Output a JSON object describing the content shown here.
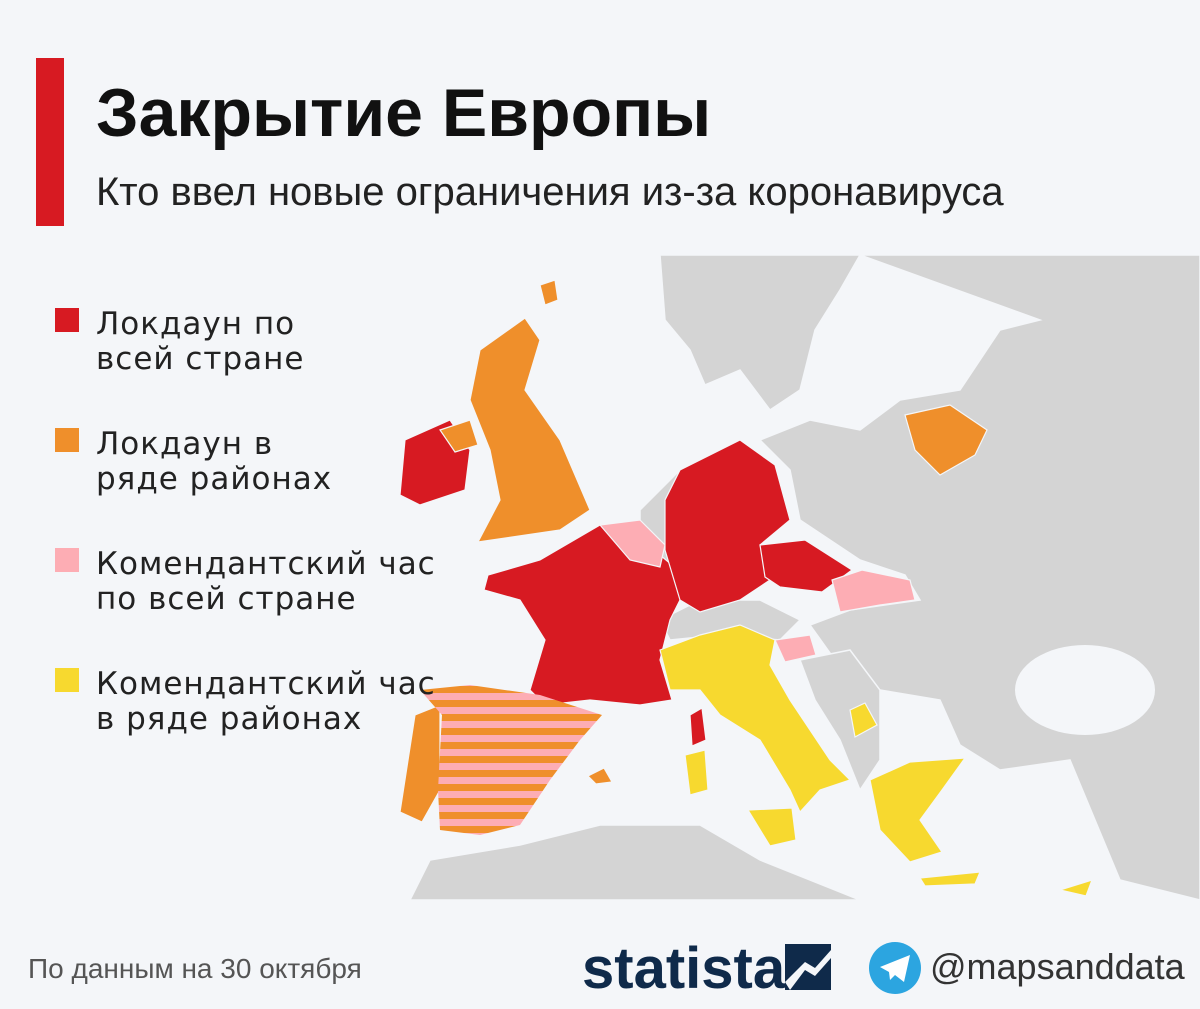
{
  "header": {
    "title": "Закрытие Европы",
    "subtitle": "Кто ввел новые ограничения из-за коронавируса"
  },
  "legend": [
    {
      "lines": [
        "Локдаун по",
        "всей стране"
      ],
      "color": "#d71a22"
    },
    {
      "lines": [
        "Локдаун в",
        "ряде районах"
      ],
      "color": "#ef8f2b"
    },
    {
      "lines": [
        "Комендантский час",
        "по всей стране"
      ],
      "color": "#fdadb4"
    },
    {
      "lines": [
        "Комендантский час",
        "в ряде районах"
      ],
      "color": "#f7d92f"
    }
  ],
  "footer": {
    "source": "По данным на 30 октября",
    "brand": "statista",
    "handle": "@mapsanddata"
  }
}
